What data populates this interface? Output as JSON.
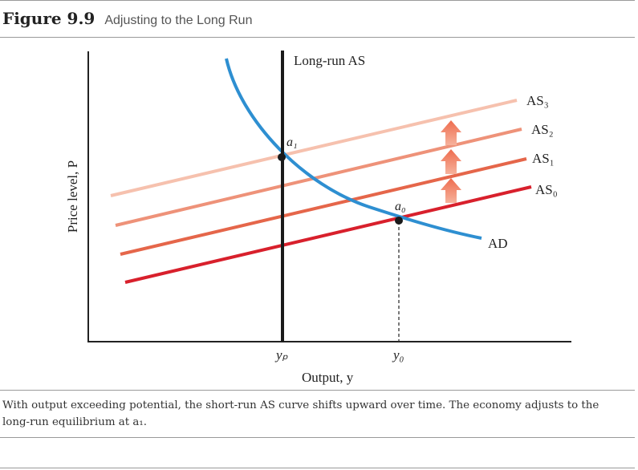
{
  "figure": {
    "number": "Figure 9.9",
    "title": "Adjusting to the Long Run"
  },
  "diagram": {
    "y_axis_label": "Price level, P",
    "x_axis_label": "Output, y",
    "long_run_label": "Long-run AS",
    "ad_label": "AD",
    "as_labels": [
      "AS₃",
      "AS₂",
      "AS₁",
      "AS₀"
    ],
    "point_labels": {
      "a1": "a₁",
      "a0": "a₀"
    },
    "tick_labels": {
      "yp": "yₚ",
      "y0": "y₀"
    },
    "colors": {
      "as3": "#f6c1ae",
      "as2": "#ee9279",
      "as1": "#e5664a",
      "as0": "#d8202c",
      "ad": "#2e8fd1",
      "long_run": "#1a1a1a",
      "arrow": "#ef7a5e"
    }
  },
  "caption": "With output exceeding potential, the short-run AS curve shifts upward over time. The economy adjusts to the long-run equilibrium at a₁."
}
